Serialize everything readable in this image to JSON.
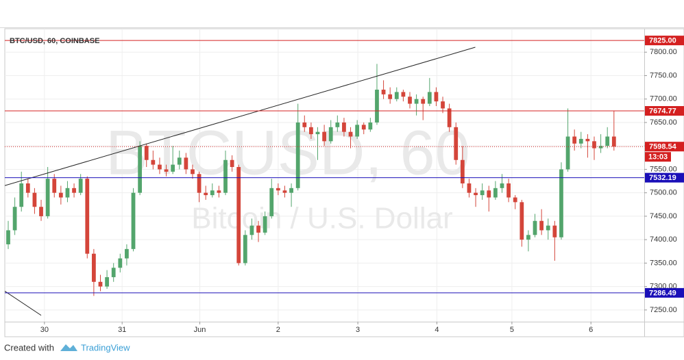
{
  "chart_data": {
    "type": "candlestick",
    "title": "BTC/USD, 60, COINBASE",
    "watermark": "BTCUSD, 60",
    "watermark_subtitle": "Bitcoin / U.S. Dollar",
    "footer": "Created with",
    "brand": "TradingView",
    "up_color": "#53a56c",
    "down_color": "#d4453a",
    "grid": true,
    "ylim": [
      7225,
      7850
    ],
    "yticks": [
      {
        "value": 7250,
        "label": "7250.00"
      },
      {
        "value": 7300,
        "label": "7300.00"
      },
      {
        "value": 7350,
        "label": "7350.00"
      },
      {
        "value": 7400,
        "label": "7400.00"
      },
      {
        "value": 7450,
        "label": "7450.00"
      },
      {
        "value": 7500,
        "label": "7500.00"
      },
      {
        "value": 7550,
        "label": "7550.00"
      },
      {
        "value": 7600,
        "label": "7600.00"
      },
      {
        "value": 7650,
        "label": "7650.00"
      },
      {
        "value": 7700,
        "label": "7700.00"
      },
      {
        "value": 7750,
        "label": "7750.00"
      },
      {
        "value": 7800,
        "label": "7800.00"
      }
    ],
    "xlim": [
      -0.52,
      96.6
    ],
    "xticks": [
      {
        "value": 5.5,
        "label": "30"
      },
      {
        "value": 17.3,
        "label": "31"
      },
      {
        "value": 29.1,
        "label": "Jun"
      },
      {
        "value": 41,
        "label": "2"
      },
      {
        "value": 53.1,
        "label": "3"
      },
      {
        "value": 65.1,
        "label": "4"
      },
      {
        "value": 76.5,
        "label": "5"
      },
      {
        "value": 88.5,
        "label": "6"
      }
    ],
    "levels": [
      {
        "value": 7825,
        "label": "7825.00",
        "color": "#d42020",
        "style": "solid"
      },
      {
        "value": 7674.77,
        "label": "7674.77",
        "color": "#d42020",
        "style": "solid"
      },
      {
        "value": 7598.54,
        "label": "7598.54",
        "color": "#d42020",
        "style": "dotted",
        "countdown": "13:03"
      },
      {
        "value": 7532.19,
        "label": "7532.19",
        "color": "#1a0fb8",
        "style": "solid"
      },
      {
        "value": 7286.49,
        "label": "7286.49",
        "color": "#1a0fb8",
        "style": "solid"
      }
    ],
    "trend_lines": [
      {
        "points": [
          [
            -0.52,
            7515.3
          ],
          [
            70.94,
            7810.6
          ]
        ]
      },
      {
        "points": [
          [
            -0.52,
            7290.1
          ],
          [
            5,
            7238.5
          ]
        ]
      }
    ],
    "ohlc": [
      [
        7390,
        7440,
        7380,
        7420
      ],
      [
        7420,
        7490,
        7410,
        7470
      ],
      [
        7470,
        7545,
        7460,
        7520
      ],
      [
        7520,
        7530,
        7490,
        7500
      ],
      [
        7500,
        7510,
        7455,
        7470
      ],
      [
        7470,
        7485,
        7440,
        7450
      ],
      [
        7450,
        7555,
        7445,
        7530
      ],
      [
        7530,
        7540,
        7490,
        7500
      ],
      [
        7500,
        7515,
        7475,
        7490
      ],
      [
        7490,
        7525,
        7480,
        7510
      ],
      [
        7510,
        7520,
        7490,
        7500
      ],
      [
        7500,
        7540,
        7495,
        7530
      ],
      [
        7530,
        7535,
        7360,
        7370
      ],
      [
        7370,
        7380,
        7280,
        7310
      ],
      [
        7310,
        7325,
        7290,
        7300
      ],
      [
        7300,
        7335,
        7295,
        7320
      ],
      [
        7320,
        7350,
        7310,
        7340
      ],
      [
        7340,
        7370,
        7330,
        7360
      ],
      [
        7360,
        7390,
        7345,
        7380
      ],
      [
        7380,
        7510,
        7375,
        7500
      ],
      [
        7500,
        7610,
        7495,
        7600
      ],
      [
        7600,
        7605,
        7555,
        7570
      ],
      [
        7570,
        7590,
        7550,
        7560
      ],
      [
        7560,
        7575,
        7540,
        7550
      ],
      [
        7550,
        7560,
        7535,
        7545
      ],
      [
        7545,
        7600,
        7540,
        7560
      ],
      [
        7560,
        7590,
        7550,
        7575
      ],
      [
        7575,
        7585,
        7540,
        7550
      ],
      [
        7550,
        7560,
        7530,
        7540
      ],
      [
        7540,
        7545,
        7480,
        7500
      ],
      [
        7500,
        7515,
        7485,
        7495
      ],
      [
        7495,
        7520,
        7490,
        7505
      ],
      [
        7505,
        7515,
        7490,
        7500
      ],
      [
        7500,
        7590,
        7495,
        7570
      ],
      [
        7570,
        7580,
        7545,
        7555
      ],
      [
        7555,
        7560,
        7345,
        7350
      ],
      [
        7350,
        7420,
        7345,
        7410
      ],
      [
        7410,
        7445,
        7400,
        7430
      ],
      [
        7430,
        7440,
        7395,
        7415
      ],
      [
        7415,
        7460,
        7410,
        7450
      ],
      [
        7450,
        7530,
        7445,
        7510
      ],
      [
        7510,
        7520,
        7495,
        7505
      ],
      [
        7505,
        7515,
        7490,
        7500
      ],
      [
        7500,
        7520,
        7470,
        7510
      ],
      [
        7510,
        7690,
        7505,
        7650
      ],
      [
        7650,
        7665,
        7630,
        7640
      ],
      [
        7640,
        7650,
        7615,
        7625
      ],
      [
        7625,
        7640,
        7570,
        7630
      ],
      [
        7630,
        7645,
        7600,
        7610
      ],
      [
        7610,
        7655,
        7605,
        7640
      ],
      [
        7640,
        7665,
        7630,
        7650
      ],
      [
        7650,
        7660,
        7620,
        7630
      ],
      [
        7630,
        7640,
        7595,
        7620
      ],
      [
        7620,
        7655,
        7615,
        7645
      ],
      [
        7645,
        7650,
        7625,
        7635
      ],
      [
        7635,
        7660,
        7630,
        7650
      ],
      [
        7650,
        7775,
        7645,
        7720
      ],
      [
        7720,
        7740,
        7700,
        7710
      ],
      [
        7710,
        7725,
        7690,
        7700
      ],
      [
        7700,
        7725,
        7695,
        7715
      ],
      [
        7715,
        7720,
        7695,
        7705
      ],
      [
        7705,
        7715,
        7680,
        7690
      ],
      [
        7690,
        7710,
        7665,
        7700
      ],
      [
        7700,
        7705,
        7655,
        7690
      ],
      [
        7690,
        7745,
        7685,
        7715
      ],
      [
        7715,
        7725,
        7685,
        7695
      ],
      [
        7695,
        7705,
        7670,
        7680
      ],
      [
        7680,
        7690,
        7630,
        7640
      ],
      [
        7640,
        7650,
        7560,
        7570
      ],
      [
        7570,
        7600,
        7510,
        7520
      ],
      [
        7520,
        7530,
        7490,
        7500
      ],
      [
        7500,
        7510,
        7470,
        7495
      ],
      [
        7495,
        7520,
        7485,
        7505
      ],
      [
        7505,
        7515,
        7460,
        7490
      ],
      [
        7490,
        7525,
        7485,
        7510
      ],
      [
        7510,
        7540,
        7500,
        7520
      ],
      [
        7520,
        7530,
        7480,
        7490
      ],
      [
        7490,
        7495,
        7465,
        7480
      ],
      [
        7480,
        7485,
        7385,
        7400
      ],
      [
        7400,
        7420,
        7375,
        7410
      ],
      [
        7410,
        7455,
        7405,
        7440
      ],
      [
        7440,
        7465,
        7410,
        7420
      ],
      [
        7420,
        7445,
        7400,
        7430
      ],
      [
        7430,
        7440,
        7355,
        7405
      ],
      [
        7405,
        7565,
        7400,
        7550
      ],
      [
        7550,
        7680,
        7545,
        7620
      ],
      [
        7620,
        7635,
        7590,
        7605
      ],
      [
        7605,
        7630,
        7595,
        7615
      ],
      [
        7615,
        7625,
        7575,
        7610
      ],
      [
        7610,
        7620,
        7570,
        7595
      ],
      [
        7595,
        7625,
        7585,
        7600
      ],
      [
        7600,
        7640,
        7595,
        7620
      ],
      [
        7620,
        7675,
        7590,
        7598.54
      ]
    ]
  }
}
